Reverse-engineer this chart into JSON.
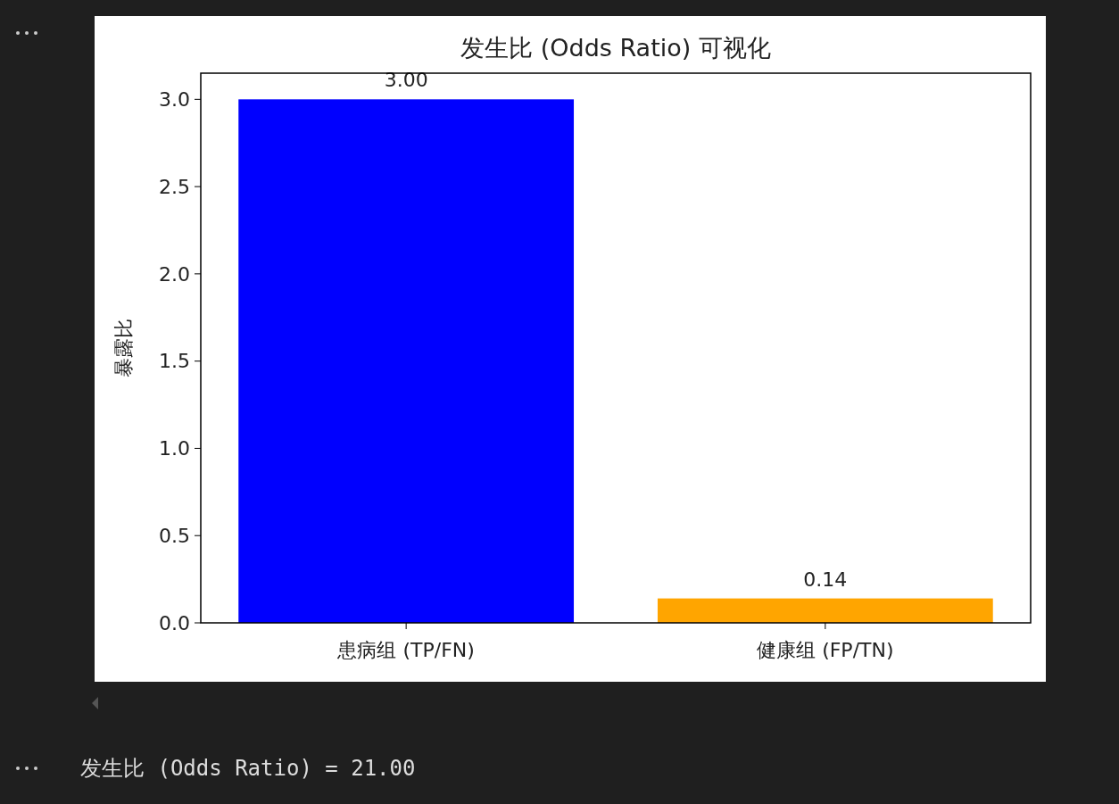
{
  "chart_data": {
    "type": "bar",
    "title": "发生比 (Odds Ratio) 可视化",
    "ylabel": "暴露比",
    "categories": [
      "患病组 (TP/FN)",
      "健康组 (FP/TN)"
    ],
    "values": [
      3.0,
      0.14
    ],
    "colors": [
      "#0000ff",
      "#ffa500"
    ],
    "value_labels": [
      "3.00",
      "0.14"
    ],
    "ylim": [
      0,
      3.15
    ],
    "yticks": [
      {
        "value": 0,
        "label": "0.0"
      },
      {
        "value": 0.5,
        "label": "0.5"
      },
      {
        "value": 1,
        "label": "1.0"
      },
      {
        "value": 1.5,
        "label": "1.5"
      },
      {
        "value": 2,
        "label": "2.0"
      },
      {
        "value": 2.5,
        "label": "2.5"
      },
      {
        "value": 3,
        "label": "3.0"
      }
    ],
    "grid": false,
    "annotations": [
      "发生比 (Odds Ratio) = 21.00"
    ]
  }
}
